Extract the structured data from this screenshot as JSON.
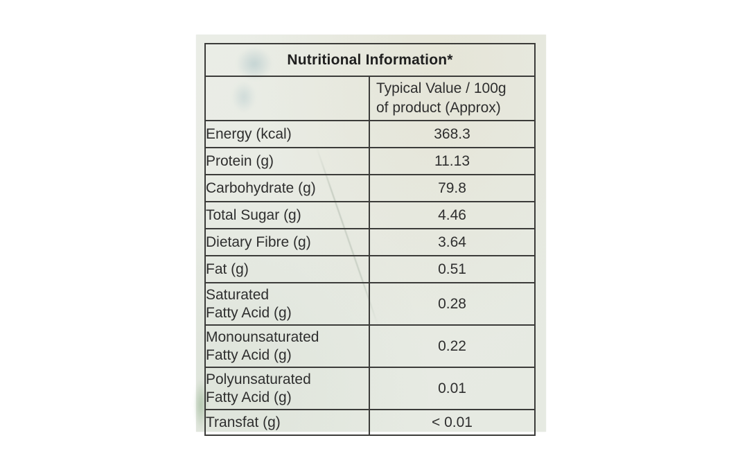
{
  "label": {
    "title": "Nutritional Information*",
    "column_header": "Typical Value / 100g\nof product (Approx)",
    "rows": [
      {
        "name": "Energy (kcal)",
        "value": "368.3"
      },
      {
        "name": "Protein (g)",
        "value": "11.13"
      },
      {
        "name": "Carbohydrate (g)",
        "value": "79.8"
      },
      {
        "name": "Total Sugar (g)",
        "value": "4.46"
      },
      {
        "name": "Dietary Fibre (g)",
        "value": "3.64"
      },
      {
        "name": "Fat (g)",
        "value": "0.51"
      },
      {
        "name": "Saturated\nFatty Acid (g)",
        "value": "0.28"
      },
      {
        "name": "Monounsaturated\nFatty Acid (g)",
        "value": "0.22"
      },
      {
        "name": "Polyunsaturated\nFatty Acid (g)",
        "value": "0.01"
      },
      {
        "name": "Transfat (g)",
        "value": "< 0.01"
      }
    ]
  },
  "colors": {
    "paper": "#e8ebe4",
    "border": "#3b3b39",
    "text": "#2e2e2e"
  }
}
